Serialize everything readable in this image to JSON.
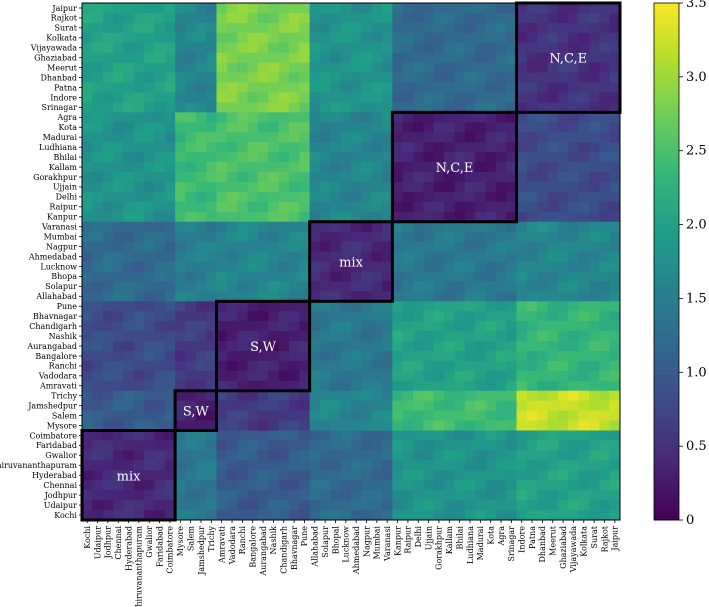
{
  "chart_data": {
    "type": "heatmap",
    "title": "",
    "xlabel": "",
    "ylabel": "",
    "y_labels": [
      "Jaipur",
      "Rajkot",
      "Surat",
      "Kolkata",
      "Vijayawada",
      "Ghaziabad",
      "Meerut",
      "Dhanbad",
      "Patna",
      "Indore",
      "Srinagar",
      "Agra",
      "Kota",
      "Madurai",
      "Ludhiana",
      "Bhilai",
      "Kallam",
      "Gorakhpur",
      "Ujjain",
      "Delhi",
      "Raipur",
      "Kanpur",
      "Varanasi",
      "Mumbai",
      "Nagpur",
      "Ahmedabad",
      "Lucknow",
      "Bhopa",
      "Solapur",
      "Allahabad",
      "Pune",
      "Bhavnagar",
      "Chandigarh",
      "Nashik",
      "Aurangabad",
      "Bangalore",
      "Ranchi",
      "Vadodara",
      "Amravati",
      "Trichy",
      "Jamshedpur",
      "Salem",
      "Mysore",
      "Coimbatore",
      "Faridabad",
      "Gwalior",
      "Thiruvananthapuram",
      "Hyderabad",
      "Chennai",
      "Jodhpur",
      "Udaipur",
      "Kochi"
    ],
    "x_labels": [
      "Kochi",
      "Udaipur",
      "Jodhpur",
      "Chennai",
      "Hyderabad",
      "Thiruvananthapuram",
      "Gwalior",
      "Faridabad",
      "Coimbatore",
      "Mysore",
      "Salem",
      "Jamshedpur",
      "Trichy",
      "Amravati",
      "Vadodara",
      "Ranchi",
      "Bangalore",
      "Aurangabad",
      "Nashik",
      "Chandigarh",
      "Bhavnagar",
      "Pune",
      "Allahabad",
      "Solapur",
      "Bhopal",
      "Lucknow",
      "Ahmedabad",
      "Nagpur",
      "Mumbai",
      "Varanasi",
      "Kanpur",
      "Raipur",
      "Delhi",
      "Ujjain",
      "Gorakhpur",
      "Kallam",
      "Bhilai",
      "Ludhiana",
      "Madurai",
      "Kota",
      "Agra",
      "Srinagar",
      "Indore",
      "Patna",
      "Dhanbad",
      "Meerut",
      "Ghaziabad",
      "Vijayawada",
      "Kolkata",
      "Surat",
      "Rajkot",
      "Jaipur"
    ],
    "blocks": [
      {
        "label": "N,C,E",
        "rows": [
          0,
          10
        ],
        "cols": [
          42,
          51
        ]
      },
      {
        "label": "N,C,E",
        "rows": [
          11,
          21
        ],
        "cols": [
          30,
          41
        ]
      },
      {
        "label": "mix",
        "rows": [
          22,
          29
        ],
        "cols": [
          22,
          29
        ]
      },
      {
        "label": "S,W",
        "rows": [
          30,
          38
        ],
        "cols": [
          13,
          21
        ]
      },
      {
        "label": "S,W",
        "rows": [
          39,
          42
        ],
        "cols": [
          9,
          12
        ]
      },
      {
        "label": "mix",
        "rows": [
          43,
          51
        ],
        "cols": [
          0,
          8
        ]
      }
    ],
    "value_matrix_blocks": [
      [
        0.5,
        1.2,
        1.8,
        2.8,
        1.6,
        2.0
      ],
      [
        0.8,
        0.3,
        1.6,
        2.5,
        2.4,
        1.8
      ],
      [
        1.6,
        1.4,
        0.4,
        1.6,
        1.5,
        1.2
      ],
      [
        2.3,
        2.0,
        1.4,
        0.3,
        0.6,
        0.8
      ],
      [
        3.2,
        2.4,
        1.6,
        0.6,
        0.3,
        1.0
      ],
      [
        2.0,
        1.8,
        1.2,
        1.0,
        1.4,
        0.4
      ]
    ],
    "colormap": "viridis",
    "colorbar": {
      "min": 0,
      "max": 3.5,
      "ticks": [
        "0",
        "0.5",
        "1.0",
        "1.5",
        "2.0",
        "2.5",
        "3.0",
        "3.5"
      ]
    }
  }
}
